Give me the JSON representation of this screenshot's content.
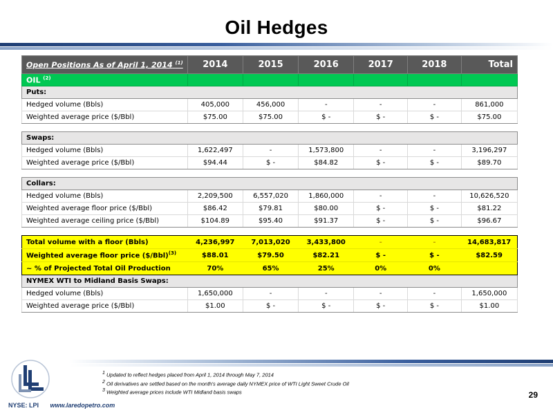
{
  "title": "Oil Hedges",
  "table": {
    "header_label": "Open Positions As of April 1, 2014",
    "header_sup": "(1)",
    "years": [
      "2014",
      "2015",
      "2016",
      "2017",
      "2018",
      "Total"
    ],
    "oil_label": "OIL",
    "oil_sup": "(2)",
    "puts": {
      "label": "Puts:",
      "rows": [
        {
          "label": "Hedged volume (Bbls)",
          "values": [
            "405,000",
            "456,000",
            "-",
            "-",
            "-",
            "861,000"
          ]
        },
        {
          "label": "Weighted average price ($/Bbl)",
          "values": [
            "$75.00",
            "$75.00",
            "$ -",
            "$ -",
            "$ -",
            "$75.00"
          ]
        }
      ]
    },
    "swaps": {
      "label": "Swaps:",
      "rows": [
        {
          "label": "Hedged volume (Bbls)",
          "values": [
            "1,622,497",
            "-",
            "1,573,800",
            "-",
            "-",
            "3,196,297"
          ]
        },
        {
          "label": "Weighted average price ($/Bbl)",
          "values": [
            "$94.44",
            "$ -",
            "$84.82",
            "$ -",
            "$ -",
            "$89.70"
          ]
        }
      ]
    },
    "collars": {
      "label": "Collars:",
      "rows": [
        {
          "label": "Hedged volume (Bbls)",
          "values": [
            "2,209,500",
            "6,557,020",
            "1,860,000",
            "-",
            "-",
            "10,626,520"
          ]
        },
        {
          "label": "Weighted average floor price ($/Bbl)",
          "values": [
            "$86.42",
            "$79.81",
            "$80.00",
            "$ -",
            "$ -",
            "$81.22"
          ]
        },
        {
          "label": "Weighted average ceiling price ($/Bbl)",
          "values": [
            "$104.89",
            "$95.40",
            "$91.37",
            "$ -",
            "$ -",
            "$96.67"
          ]
        }
      ]
    },
    "summary": {
      "rows": [
        {
          "label": "Total volume with a floor (Bbls)",
          "sup": "",
          "values": [
            "4,236,997",
            "7,013,020",
            "3,433,800",
            "-",
            "-",
            "14,683,817"
          ]
        },
        {
          "label": "Weighted average floor price ($/Bbl)",
          "sup": "(3)",
          "values": [
            "$88.01",
            "$79.50",
            "$82.21",
            "$ -",
            "$ -",
            "$82.59"
          ]
        },
        {
          "label": "~ % of Projected Total Oil Production",
          "sup": "",
          "values": [
            "70%",
            "65%",
            "25%",
            "0%",
            "0%",
            ""
          ]
        }
      ]
    },
    "basis": {
      "label": "NYMEX WTI to Midland Basis Swaps:",
      "rows": [
        {
          "label": "Hedged volume (Bbls)",
          "values": [
            "1,650,000",
            "-",
            "-",
            "-",
            "-",
            "1,650,000"
          ]
        },
        {
          "label": "Weighted average price ($/Bbl)",
          "values": [
            "$1.00",
            "$ -",
            "$ -",
            "$ -",
            "$ -",
            "$1.00"
          ]
        }
      ]
    }
  },
  "footnotes": {
    "n1_sup": "1",
    "n1": "Updated to reflect hedges placed from April 1, 2014 through May 7, 2014",
    "n2_sup": "2",
    "n2": "Oil derivatives are settled based on the month's average daily NYMEX price of WTI Light Sweet Crude Oil",
    "n3_sup": "3",
    "n3": "Weighted average prices include WTI Midland basis swaps"
  },
  "page_number": "29",
  "footer": {
    "ticker": "NYSE: LPI",
    "url": "www.laredopetro.com"
  },
  "colors": {
    "header_bg": "#595959",
    "oil_green": "#00c853",
    "highlight_yellow": "#ffff00",
    "brand_blue": "#1f3e73"
  },
  "logo_icon": "laredo-ll-logo-icon"
}
